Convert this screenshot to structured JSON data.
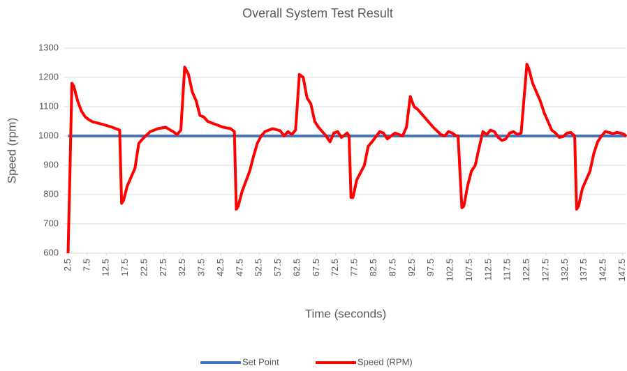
{
  "chart_data": {
    "type": "line",
    "title": "Overall System Test Result",
    "xlabel": "Time (seconds)",
    "ylabel": "Speed (rpm)",
    "xlim": [
      1.5,
      148.5
    ],
    "xticks": [
      2.5,
      7.5,
      12.5,
      17.5,
      22.5,
      27.5,
      32.5,
      37.5,
      42.5,
      47.5,
      52.5,
      57.5,
      62.5,
      67.5,
      72.5,
      77.5,
      82.5,
      87.5,
      92.5,
      97.5,
      102.5,
      107.5,
      112.5,
      117.5,
      122.5,
      127.5,
      132.5,
      137.5,
      142.5,
      147.5
    ],
    "ylim": [
      600,
      1300
    ],
    "yticks": [
      600,
      700,
      800,
      900,
      1000,
      1100,
      1200,
      1300
    ],
    "grid": true,
    "legend": "bottom",
    "series": [
      {
        "name": "Set Point",
        "color": "#4472c4",
        "x": [
          2.5,
          148.5
        ],
        "values": [
          1000,
          1000
        ]
      },
      {
        "name": "Speed (RPM)",
        "color": "#ff0000",
        "x": [
          2.5,
          3,
          3.5,
          4,
          5,
          6,
          7,
          8,
          9,
          10,
          12,
          14,
          16,
          16.5,
          17,
          18,
          19,
          20,
          21,
          22,
          24,
          26,
          28,
          29,
          30,
          31,
          32,
          33,
          34,
          35,
          36,
          37,
          38,
          39,
          41,
          43,
          45,
          46,
          46.5,
          47,
          48,
          50,
          51,
          52,
          53,
          54,
          56,
          58,
          59,
          60,
          61,
          62,
          63,
          64,
          65,
          66,
          67,
          68,
          70,
          71,
          72,
          73,
          74,
          75.5,
          76,
          76.5,
          77,
          78,
          80,
          81,
          82,
          84,
          85,
          86,
          87,
          88,
          90,
          91,
          92,
          93,
          94,
          96,
          98,
          100,
          101,
          102,
          103,
          104,
          104.5,
          105.5,
          106,
          107,
          108,
          109,
          110,
          111,
          112,
          113,
          114,
          115,
          116,
          117,
          118,
          119,
          120,
          121,
          122.5,
          123,
          124,
          125,
          126,
          127,
          128,
          129,
          130,
          131,
          132,
          133,
          134,
          135,
          135.5,
          136,
          137,
          138,
          139,
          140,
          141,
          142,
          143,
          144,
          145,
          146,
          147,
          148,
          148.5
        ],
        "values": [
          600,
          880,
          1180,
          1170,
          1120,
          1085,
          1065,
          1055,
          1048,
          1045,
          1038,
          1030,
          1020,
          770,
          780,
          830,
          860,
          890,
          975,
          990,
          1015,
          1025,
          1030,
          1022,
          1015,
          1005,
          1020,
          1235,
          1210,
          1150,
          1120,
          1070,
          1065,
          1050,
          1040,
          1030,
          1025,
          1015,
          750,
          760,
          810,
          880,
          930,
          975,
          1000,
          1015,
          1025,
          1018,
          1000,
          1015,
          1005,
          1020,
          1210,
          1200,
          1130,
          1110,
          1050,
          1030,
          1000,
          980,
          1010,
          1015,
          995,
          1010,
          1000,
          790,
          790,
          850,
          900,
          965,
          980,
          1015,
          1010,
          990,
          1000,
          1010,
          1000,
          1030,
          1135,
          1100,
          1090,
          1060,
          1030,
          1005,
          1000,
          1015,
          1010,
          1000,
          1000,
          755,
          760,
          830,
          880,
          900,
          960,
          1015,
          1005,
          1020,
          1015,
          995,
          985,
          990,
          1010,
          1015,
          1005,
          1010,
          1245,
          1230,
          1180,
          1150,
          1120,
          1080,
          1050,
          1020,
          1010,
          995,
          998,
          1010,
          1012,
          1000,
          750,
          760,
          820,
          850,
          880,
          940,
          980,
          1000,
          1015,
          1012,
          1008,
          1012,
          1010,
          1005,
          998
        ]
      }
    ]
  }
}
